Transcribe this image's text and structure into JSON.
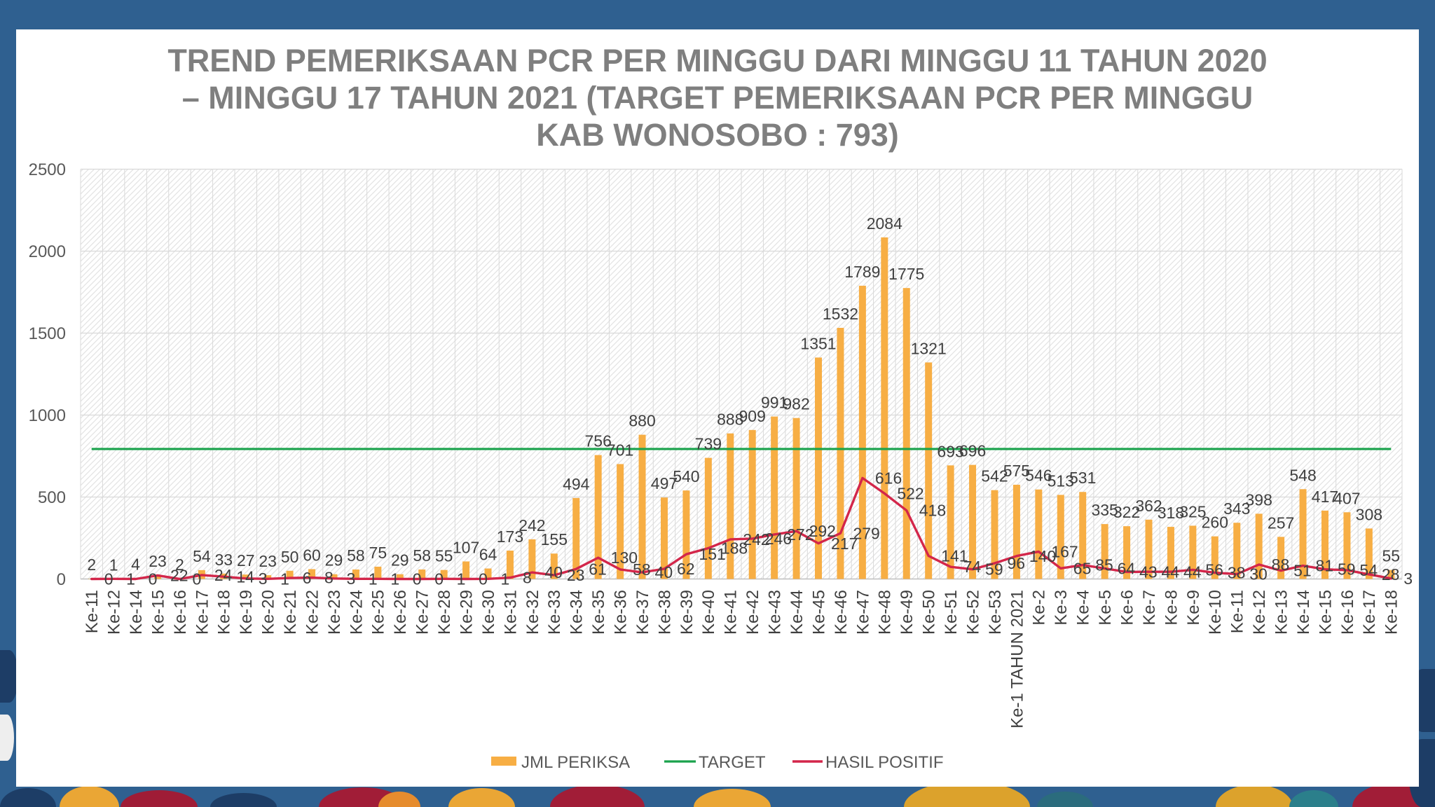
{
  "chart_data": {
    "type": "bar",
    "title_lines": [
      "TREND PEMERIKSAAN PCR PER MINGGU DARI MINGGU 11 TAHUN 2020",
      "– MINGGU 17 TAHUN 2021 (TARGET PEMERIKSAAN PCR PER MINGGU",
      "KAB WONOSOBO : 793)"
    ],
    "categories": [
      "Ke-11",
      "Ke-12",
      "Ke-14",
      "Ke-15",
      "Ke-16",
      "Ke-17",
      "Ke-18",
      "Ke-19",
      "Ke-20",
      "Ke-21",
      "Ke-22",
      "Ke-23",
      "Ke-24",
      "Ke-25",
      "Ke-26",
      "Ke-27",
      "Ke-28",
      "Ke-29",
      "Ke-30",
      "Ke-31",
      "Ke-32",
      "Ke-33",
      "Ke-34",
      "Ke-35",
      "Ke-36",
      "Ke-37",
      "Ke-38",
      "Ke-39",
      "Ke-40",
      "Ke-41",
      "Ke-42",
      "Ke-43",
      "Ke-44",
      "Ke-45",
      "Ke-46",
      "Ke-47",
      "Ke-48",
      "Ke-49",
      "Ke-50",
      "Ke-51",
      "Ke-52",
      "Ke-53",
      "Ke-1 TAHUN 2021",
      "Ke-2",
      "Ke-3",
      "Ke-4",
      "Ke-5",
      "Ke-6",
      "Ke-7",
      "Ke-8",
      "Ke-9",
      "Ke-10",
      "Ke-11",
      "Ke-12",
      "Ke-13",
      "Ke-14",
      "Ke-15",
      "Ke-16",
      "Ke-17",
      "Ke-18"
    ],
    "series": [
      {
        "name": "JML PERIKSA",
        "type": "bar",
        "color": "#f7ae44",
        "values": [
          2,
          1,
          4,
          23,
          2,
          54,
          33,
          27,
          23,
          50,
          60,
          29,
          58,
          75,
          29,
          58,
          55,
          107,
          64,
          173,
          242,
          155,
          494,
          756,
          701,
          880,
          497,
          540,
          739,
          888,
          909,
          991,
          982,
          1351,
          1532,
          1789,
          2084,
          1775,
          1321,
          693,
          696,
          542,
          575,
          546,
          513,
          531,
          335,
          322,
          362,
          318,
          325,
          260,
          343,
          398,
          257,
          548,
          417,
          407,
          308,
          55
        ]
      },
      {
        "name": "TARGET",
        "type": "line",
        "color": "#1aa24c",
        "value": 793
      },
      {
        "name": "HASIL POSITIF",
        "type": "line",
        "color": "#d3264a",
        "values": [
          0,
          1,
          0,
          22,
          0,
          24,
          14,
          3,
          1,
          6,
          8,
          3,
          1,
          1,
          0,
          0,
          1,
          0,
          1,
          8,
          40,
          23,
          61,
          130,
          58,
          40,
          62,
          151,
          188,
          242,
          246,
          272,
          292,
          217,
          279,
          616,
          522,
          418,
          141,
          74,
          59,
          96,
          140,
          167,
          65,
          85,
          64,
          43,
          44,
          44,
          56,
          38,
          30,
          88,
          51,
          81,
          59,
          54,
          28,
          3
        ]
      }
    ],
    "ylim": [
      0,
      2500
    ],
    "yticks": [
      0,
      500,
      1000,
      1500,
      2000,
      2500
    ],
    "grid": true,
    "legend": "bottom"
  }
}
